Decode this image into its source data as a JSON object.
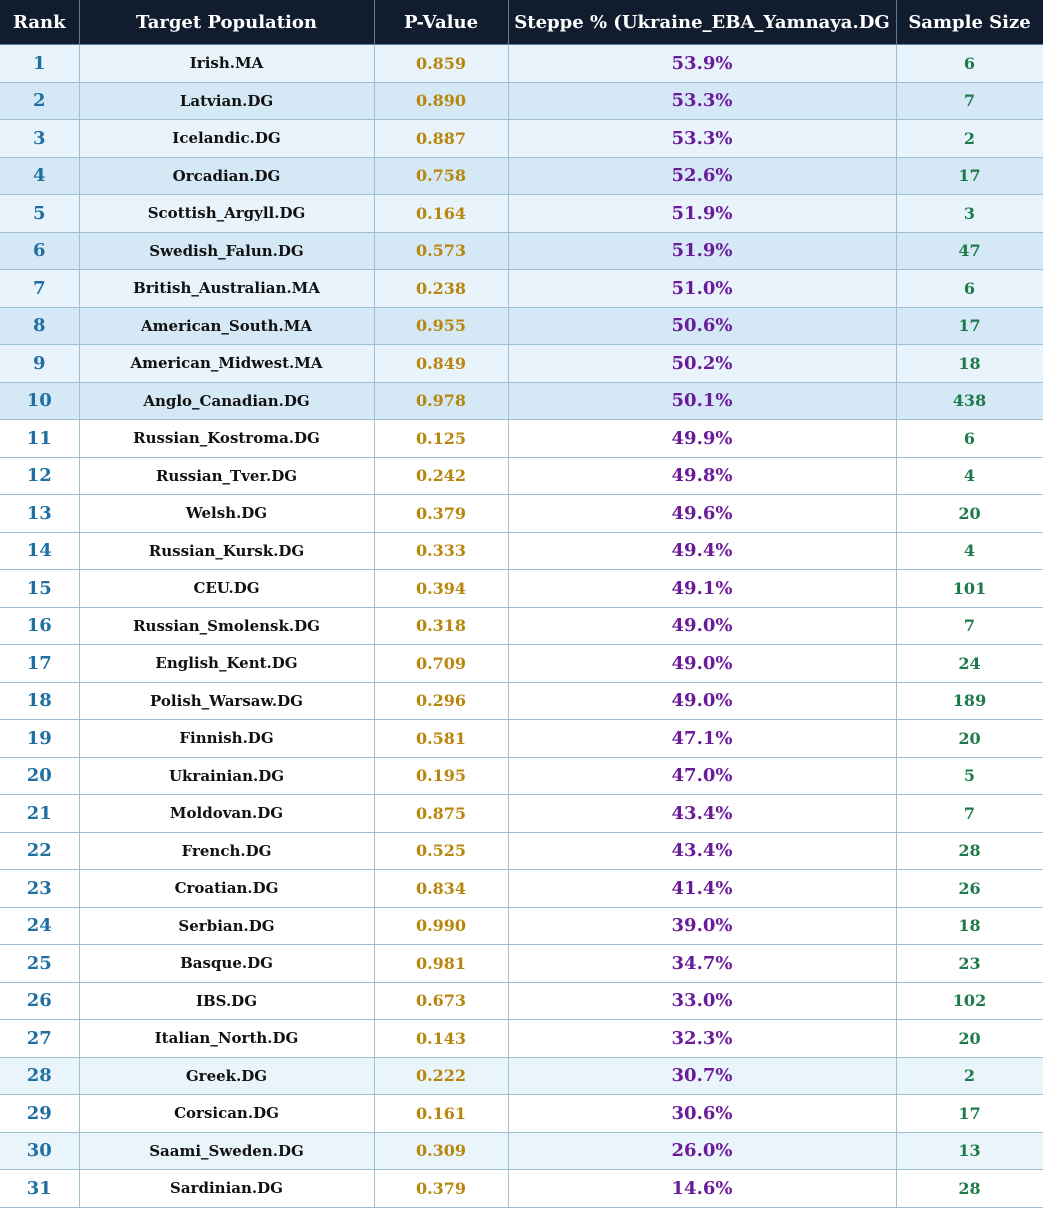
{
  "table": {
    "headers": {
      "rank": "Rank",
      "population": "Target Population",
      "pvalue": "P-Value",
      "steppe": "Steppe % (Ukraine_EBA_Yamnaya.DG",
      "sample_size": "Sample Size"
    },
    "rows": [
      {
        "rank": "1",
        "population": "Irish.MA",
        "pvalue": "0.859",
        "steppe": "53.9%",
        "sample_size": "6"
      },
      {
        "rank": "2",
        "population": "Latvian.DG",
        "pvalue": "0.890",
        "steppe": "53.3%",
        "sample_size": "7"
      },
      {
        "rank": "3",
        "population": "Icelandic.DG",
        "pvalue": "0.887",
        "steppe": "53.3%",
        "sample_size": "2"
      },
      {
        "rank": "4",
        "population": "Orcadian.DG",
        "pvalue": "0.758",
        "steppe": "52.6%",
        "sample_size": "17"
      },
      {
        "rank": "5",
        "population": "Scottish_Argyll.DG",
        "pvalue": "0.164",
        "steppe": "51.9%",
        "sample_size": "3"
      },
      {
        "rank": "6",
        "population": "Swedish_Falun.DG",
        "pvalue": "0.573",
        "steppe": "51.9%",
        "sample_size": "47"
      },
      {
        "rank": "7",
        "population": "British_Australian.MA",
        "pvalue": "0.238",
        "steppe": "51.0%",
        "sample_size": "6"
      },
      {
        "rank": "8",
        "population": "American_South.MA",
        "pvalue": "0.955",
        "steppe": "50.6%",
        "sample_size": "17"
      },
      {
        "rank": "9",
        "population": "American_Midwest.MA",
        "pvalue": "0.849",
        "steppe": "50.2%",
        "sample_size": "18"
      },
      {
        "rank": "10",
        "population": "Anglo_Canadian.DG",
        "pvalue": "0.978",
        "steppe": "50.1%",
        "sample_size": "438"
      },
      {
        "rank": "11",
        "population": "Russian_Kostroma.DG",
        "pvalue": "0.125",
        "steppe": "49.9%",
        "sample_size": "6"
      },
      {
        "rank": "12",
        "population": "Russian_Tver.DG",
        "pvalue": "0.242",
        "steppe": "49.8%",
        "sample_size": "4"
      },
      {
        "rank": "13",
        "population": "Welsh.DG",
        "pvalue": "0.379",
        "steppe": "49.6%",
        "sample_size": "20"
      },
      {
        "rank": "14",
        "population": "Russian_Kursk.DG",
        "pvalue": "0.333",
        "steppe": "49.4%",
        "sample_size": "4"
      },
      {
        "rank": "15",
        "population": "CEU.DG",
        "pvalue": "0.394",
        "steppe": "49.1%",
        "sample_size": "101"
      },
      {
        "rank": "16",
        "population": "Russian_Smolensk.DG",
        "pvalue": "0.318",
        "steppe": "49.0%",
        "sample_size": "7"
      },
      {
        "rank": "17",
        "population": "English_Kent.DG",
        "pvalue": "0.709",
        "steppe": "49.0%",
        "sample_size": "24"
      },
      {
        "rank": "18",
        "population": "Polish_Warsaw.DG",
        "pvalue": "0.296",
        "steppe": "49.0%",
        "sample_size": "189"
      },
      {
        "rank": "19",
        "population": "Finnish.DG",
        "pvalue": "0.581",
        "steppe": "47.1%",
        "sample_size": "20"
      },
      {
        "rank": "20",
        "population": "Ukrainian.DG",
        "pvalue": "0.195",
        "steppe": "47.0%",
        "sample_size": "5"
      },
      {
        "rank": "21",
        "population": "Moldovan.DG",
        "pvalue": "0.875",
        "steppe": "43.4%",
        "sample_size": "7"
      },
      {
        "rank": "22",
        "population": "French.DG",
        "pvalue": "0.525",
        "steppe": "43.4%",
        "sample_size": "28"
      },
      {
        "rank": "23",
        "population": "Croatian.DG",
        "pvalue": "0.834",
        "steppe": "41.4%",
        "sample_size": "26"
      },
      {
        "rank": "24",
        "population": "Serbian.DG",
        "pvalue": "0.990",
        "steppe": "39.0%",
        "sample_size": "18"
      },
      {
        "rank": "25",
        "population": "Basque.DG",
        "pvalue": "0.981",
        "steppe": "34.7%",
        "sample_size": "23"
      },
      {
        "rank": "26",
        "population": "IBS.DG",
        "pvalue": "0.673",
        "steppe": "33.0%",
        "sample_size": "102"
      },
      {
        "rank": "27",
        "population": "Italian_North.DG",
        "pvalue": "0.143",
        "steppe": "32.3%",
        "sample_size": "20"
      },
      {
        "rank": "28",
        "population": "Greek.DG",
        "pvalue": "0.222",
        "steppe": "30.7%",
        "sample_size": "2"
      },
      {
        "rank": "29",
        "population": "Corsican.DG",
        "pvalue": "0.161",
        "steppe": "30.6%",
        "sample_size": "17"
      },
      {
        "rank": "30",
        "population": "Saami_Sweden.DG",
        "pvalue": "0.309",
        "steppe": "26.0%",
        "sample_size": "13"
      },
      {
        "rank": "31",
        "population": "Sardinian.DG",
        "pvalue": "0.379",
        "steppe": "14.6%",
        "sample_size": "28"
      }
    ]
  },
  "colors": {
    "header_bg": "#111d2e",
    "highlight_light": "#e9f3fb",
    "highlight_dark": "#d5e8f6",
    "rank_text": "#1f6fa3",
    "pvalue_text": "#b8860b",
    "steppe_text": "#6a1b9a",
    "sample_size_text": "#1e7a4a"
  }
}
